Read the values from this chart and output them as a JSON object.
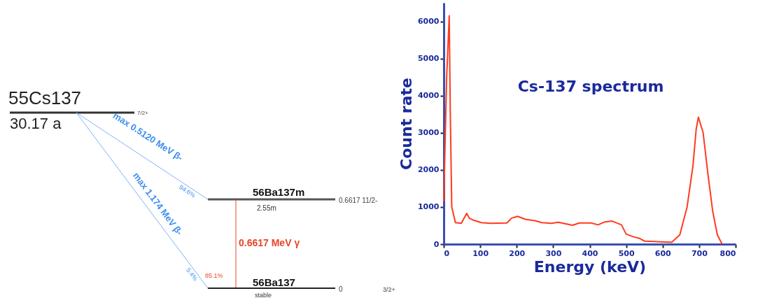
{
  "chart_data": [
    {
      "type": "other",
      "annotations": [
        "55Cs137",
        "30.17 a",
        "7/2+",
        "max 0.5120 MeV β-",
        "94.6%",
        "max 1.174 MeV β-",
        "5.4%",
        "56Ba137m",
        "2.55m",
        "0.6617 11/2-",
        "0.6617 MeV γ",
        "85.1%",
        "56Ba137",
        "stable",
        "0",
        "3/2+"
      ]
    },
    {
      "type": "line",
      "title": "Cs-137 spectrum",
      "xlabel": "Energy (keV)",
      "ylabel": "Count rate",
      "color": "#ff3b1f",
      "x": [
        0,
        8,
        15,
        18,
        22,
        32,
        48,
        63,
        70,
        83,
        103,
        128,
        173,
        186,
        202,
        224,
        250,
        269,
        295,
        314,
        353,
        372,
        404,
        423,
        442,
        462,
        487,
        500,
        519,
        538,
        551,
        577,
        596,
        625,
        647,
        667,
        683,
        692,
        698,
        711,
        724,
        737,
        750,
        763
      ],
      "values": [
        1150,
        4500,
        6150,
        3500,
        1000,
        580,
        560,
        830,
        700,
        640,
        580,
        560,
        570,
        700,
        750,
        670,
        630,
        580,
        560,
        590,
        510,
        570,
        570,
        520,
        600,
        620,
        520,
        270,
        200,
        150,
        80,
        70,
        60,
        50,
        250,
        1000,
        2100,
        3100,
        3420,
        3000,
        1900,
        900,
        250,
        0
      ],
      "xlim": [
        0,
        800
      ],
      "xticks": [
        0,
        100,
        200,
        300,
        400,
        500,
        600,
        700,
        800
      ],
      "ylim": [
        0,
        6500
      ],
      "yticks": [
        0,
        1000,
        2000,
        3000,
        4000,
        5000,
        6000
      ],
      "grid": false
    }
  ]
}
